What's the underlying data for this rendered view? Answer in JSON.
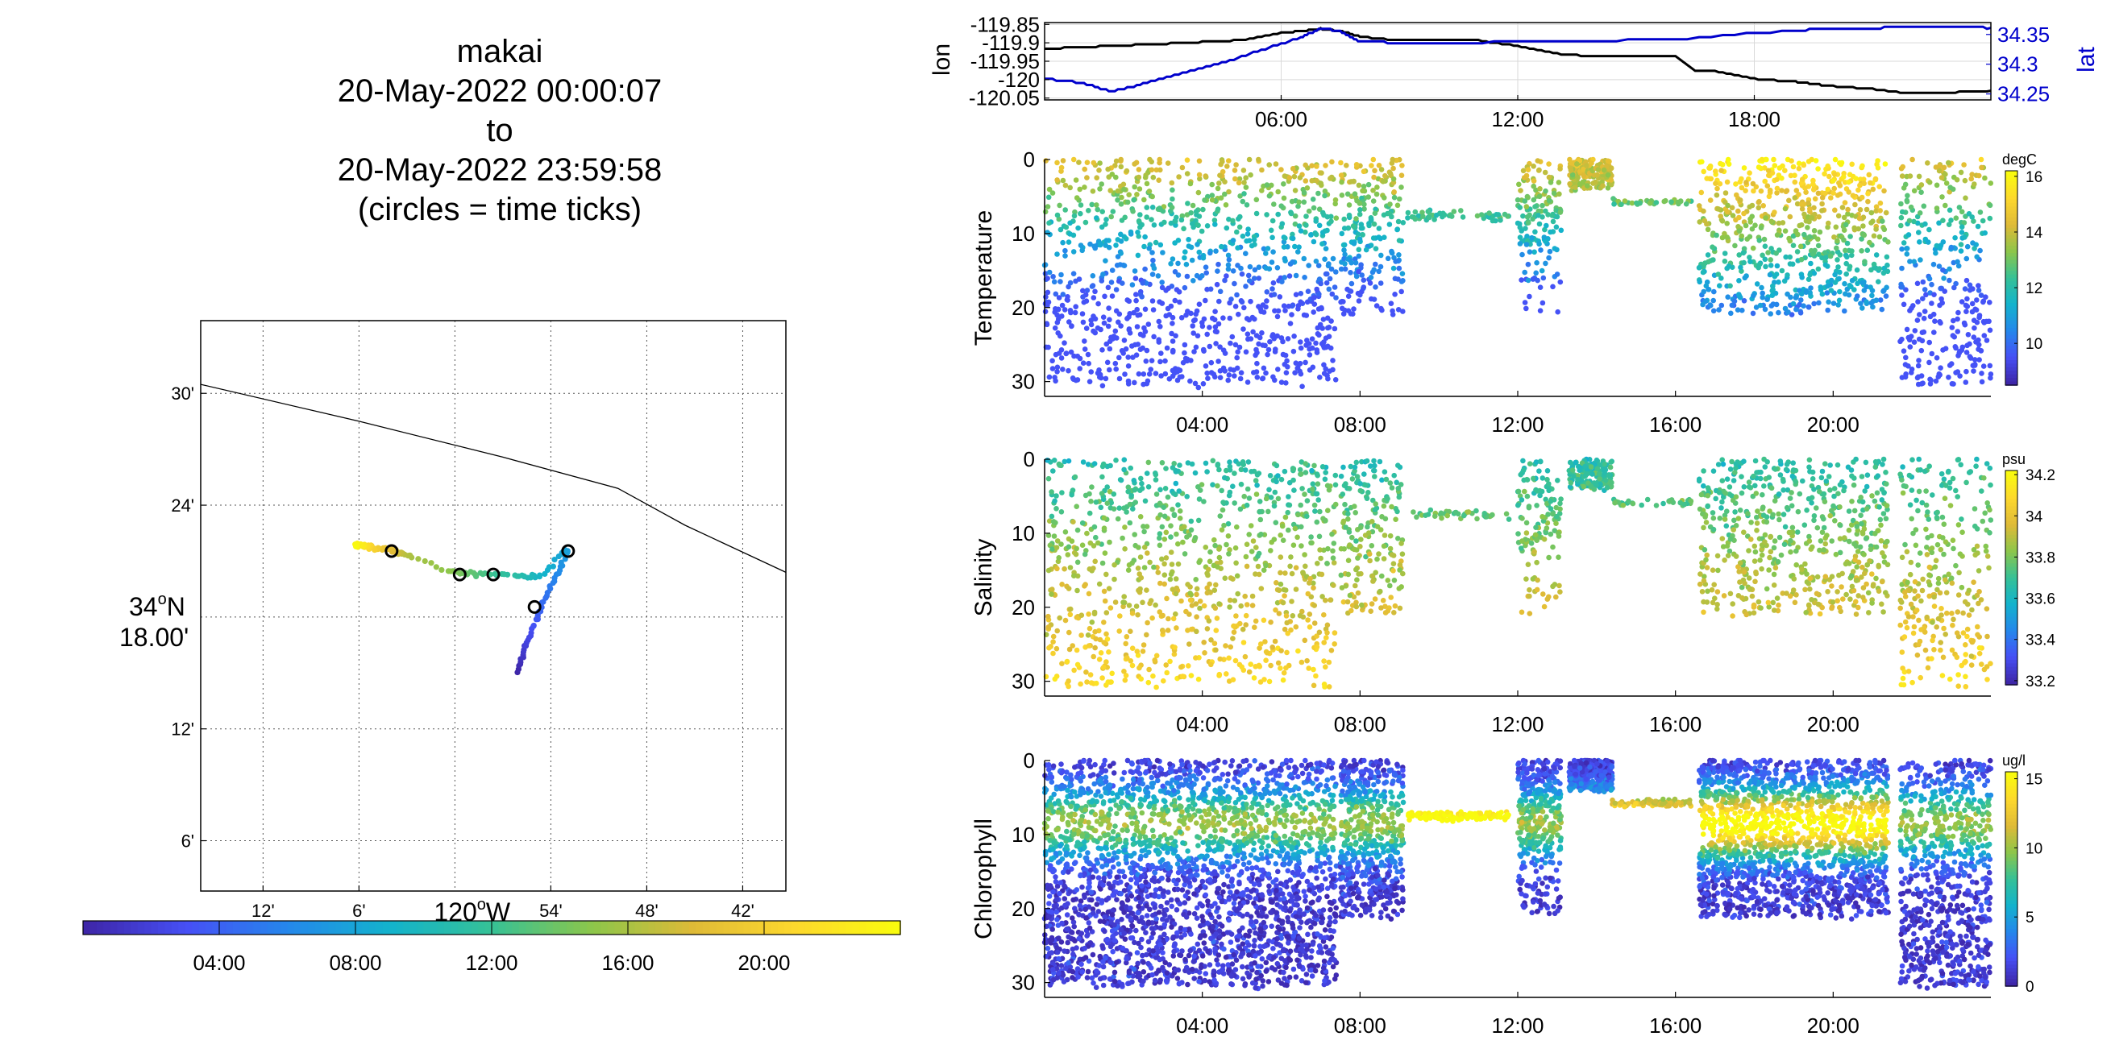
{
  "title": {
    "line1": "makai",
    "line2": "20-May-2022 00:00:07",
    "line3": "to",
    "line4": "20-May-2022 23:59:58",
    "line5": "(circles = time ticks)"
  },
  "colors": {
    "parula": [
      "#3e26a8",
      "#4650f6",
      "#2488eb",
      "#13b3cc",
      "#36c196",
      "#8dc64a",
      "#dfba37",
      "#fdd82d",
      "#f9fb0e"
    ],
    "lon_line": "#000000",
    "lat_line": "#0000cc",
    "grid": "#d9d9d9",
    "coastline": "#000000"
  },
  "chart_data": [
    {
      "type": "map",
      "name": "track-map",
      "x_ticks": [
        "12'",
        "6'",
        "54'",
        "48'",
        "42'"
      ],
      "x_tick_values": [
        -120.2,
        -120.1,
        -119.9,
        -119.8,
        -119.7
      ],
      "x_major_label": "120°W",
      "x_major_deg": "120",
      "x_major_hem": "W",
      "y_ticks": [
        "30'",
        "24'",
        "12'",
        "6'"
      ],
      "y_tick_values": [
        34.5,
        34.4,
        34.2,
        34.1
      ],
      "y_major_label_line1": "34°N",
      "y_major_deg": "34",
      "y_major_hem": "N",
      "y_major_label_line2": "18.00'",
      "y_major_value": 34.3,
      "xlim": [
        -120.265,
        -119.655
      ],
      "ylim": [
        34.055,
        34.565
      ],
      "coastline": [
        [
          -120.265,
          34.508
        ],
        [
          -120.1,
          34.475
        ],
        [
          -119.95,
          34.443
        ],
        [
          -119.83,
          34.415
        ],
        [
          -119.76,
          34.382
        ],
        [
          -119.655,
          34.34
        ]
      ],
      "track": [
        {
          "t": 0.0,
          "lon": -119.935,
          "lat": 34.252
        },
        {
          "t": 1.0,
          "lon": -119.93,
          "lat": 34.264
        },
        {
          "t": 2.0,
          "lon": -119.925,
          "lat": 34.277
        },
        {
          "t": 3.0,
          "lon": -119.918,
          "lat": 34.292
        },
        {
          "t": 4.0,
          "lon": -119.911,
          "lat": 34.306
        },
        {
          "t": 5.0,
          "lon": -119.903,
          "lat": 34.322
        },
        {
          "t": 6.0,
          "lon": -119.894,
          "lat": 34.338
        },
        {
          "t": 7.0,
          "lon": -119.886,
          "lat": 34.352
        },
        {
          "t": 7.5,
          "lon": -119.882,
          "lat": 34.36
        },
        {
          "t": 8.0,
          "lon": -119.89,
          "lat": 34.357
        },
        {
          "t": 9.0,
          "lon": -119.907,
          "lat": 34.337
        },
        {
          "t": 10.0,
          "lon": -119.921,
          "lat": 34.336
        },
        {
          "t": 11.0,
          "lon": -119.936,
          "lat": 34.337
        },
        {
          "t": 12.0,
          "lon": -119.96,
          "lat": 34.338
        },
        {
          "t": 13.0,
          "lon": -119.976,
          "lat": 34.338
        },
        {
          "t": 14.0,
          "lon": -119.992,
          "lat": 34.34
        },
        {
          "t": 15.0,
          "lon": -120.006,
          "lat": 34.342
        },
        {
          "t": 16.0,
          "lon": -120.045,
          "lat": 34.355
        },
        {
          "t": 17.0,
          "lon": -120.058,
          "lat": 34.357
        },
        {
          "t": 18.0,
          "lon": -120.065,
          "lat": 34.359
        },
        {
          "t": 19.0,
          "lon": -120.073,
          "lat": 34.361
        },
        {
          "t": 20.0,
          "lon": -120.082,
          "lat": 34.361
        },
        {
          "t": 21.0,
          "lon": -120.09,
          "lat": 34.362
        },
        {
          "t": 22.0,
          "lon": -120.095,
          "lat": 34.363
        },
        {
          "t": 23.0,
          "lon": -120.1,
          "lat": 34.364
        },
        {
          "t": 24.0,
          "lon": -120.105,
          "lat": 34.364
        }
      ],
      "time_tick_circles": [
        {
          "lon": -119.917,
          "lat": 34.309
        },
        {
          "lon": -119.882,
          "lat": 34.359
        },
        {
          "lon": -119.96,
          "lat": 34.338
        },
        {
          "lon": -119.995,
          "lat": 34.338
        },
        {
          "lon": -120.066,
          "lat": 34.359
        }
      ]
    },
    {
      "type": "colorbar",
      "name": "time-colorbar",
      "orientation": "horizontal",
      "range_hours": [
        0,
        24
      ],
      "ticks": [
        "04:00",
        "08:00",
        "12:00",
        "16:00",
        "20:00"
      ],
      "tick_values": [
        4,
        8,
        12,
        16,
        20
      ]
    },
    {
      "type": "line",
      "name": "lon-lat-timeseries",
      "xlim_hours": [
        0,
        24
      ],
      "x_ticks": [
        "06:00",
        "12:00",
        "18:00"
      ],
      "x_tick_values": [
        6,
        12,
        18
      ],
      "ylabel_left": "lon",
      "ylabel_right": "lat",
      "y_left_ticks": [
        "-119.85",
        "-119.9",
        "-119.95",
        "-120",
        "-120.05"
      ],
      "y_left_values": [
        -119.85,
        -119.9,
        -119.95,
        -120.0,
        -120.05
      ],
      "y_left_lim": [
        -120.055,
        -119.845
      ],
      "y_right_ticks": [
        "34.35",
        "34.3",
        "34.25"
      ],
      "y_right_values": [
        34.35,
        34.3,
        34.25
      ],
      "y_right_lim": [
        34.24,
        34.37
      ],
      "series": [
        {
          "name": "lon",
          "axis": "left",
          "x": [
            0,
            1,
            2,
            3,
            4,
            5,
            6,
            6.5,
            7,
            7.5,
            8,
            9,
            10,
            11,
            12,
            13,
            14,
            15,
            16,
            16.5,
            17,
            18,
            19,
            19.5,
            20,
            21,
            22,
            23,
            24
          ],
          "y": [
            -119.916,
            -119.912,
            -119.907,
            -119.903,
            -119.898,
            -119.893,
            -119.874,
            -119.868,
            -119.862,
            -119.868,
            -119.883,
            -119.894,
            -119.894,
            -119.894,
            -119.908,
            -119.93,
            -119.937,
            -119.937,
            -119.937,
            -119.975,
            -119.978,
            -119.998,
            -120.005,
            -120.012,
            -120.018,
            -120.025,
            -120.038,
            -120.035,
            -120.03
          ]
        },
        {
          "name": "lat",
          "axis": "right",
          "x": [
            0,
            1,
            1.7,
            2.5,
            3.5,
            4.5,
            5.5,
            6.5,
            7,
            7.5,
            8,
            9,
            12,
            13,
            16,
            19,
            20,
            21,
            22,
            23,
            24
          ],
          "y": [
            34.276,
            34.268,
            34.254,
            34.267,
            34.286,
            34.302,
            34.324,
            34.345,
            34.36,
            34.356,
            34.338,
            34.336,
            34.337,
            34.338,
            34.342,
            34.357,
            34.359,
            34.361,
            34.362,
            34.363,
            34.361
          ]
        }
      ]
    },
    {
      "type": "scatter",
      "name": "temperature-section",
      "ylabel": "Temperature",
      "colorbar_unit": "degC",
      "colorbar_ticks": [
        "16",
        "14",
        "12",
        "10"
      ],
      "colorbar_tick_values": [
        16,
        14,
        12,
        10
      ],
      "color_range": [
        8.5,
        16.2
      ],
      "xlim_hours": [
        0,
        24
      ],
      "x_ticks": [
        "04:00",
        "08:00",
        "12:00",
        "16:00",
        "20:00"
      ],
      "x_tick_values": [
        4,
        8,
        12,
        16,
        20
      ],
      "y_ticks": [
        "0",
        "10",
        "20",
        "30"
      ],
      "y_tick_values": [
        0,
        10,
        20,
        30
      ],
      "ylim_reversed": [
        0,
        32
      ]
    },
    {
      "type": "scatter",
      "name": "salinity-section",
      "ylabel": "Salinity",
      "colorbar_unit": "psu",
      "colorbar_ticks": [
        "34.2",
        "34",
        "33.8",
        "33.6",
        "33.4",
        "33.2"
      ],
      "colorbar_tick_values": [
        34.2,
        34.0,
        33.8,
        33.6,
        33.4,
        33.2
      ],
      "color_range": [
        33.18,
        34.22
      ],
      "xlim_hours": [
        0,
        24
      ],
      "x_ticks": [
        "04:00",
        "08:00",
        "12:00",
        "16:00",
        "20:00"
      ],
      "x_tick_values": [
        4,
        8,
        12,
        16,
        20
      ],
      "y_ticks": [
        "0",
        "10",
        "20",
        "30"
      ],
      "y_tick_values": [
        0,
        10,
        20,
        30
      ],
      "ylim_reversed": [
        0,
        32
      ]
    },
    {
      "type": "scatter",
      "name": "chlorophyll-section",
      "ylabel": "Chlorophyll",
      "colorbar_unit": "ug/l",
      "colorbar_ticks": [
        "15",
        "10",
        "5",
        "0"
      ],
      "colorbar_tick_values": [
        15,
        10,
        5,
        0
      ],
      "color_range": [
        0,
        15.5
      ],
      "xlim_hours": [
        0,
        24
      ],
      "x_ticks": [
        "04:00",
        "08:00",
        "12:00",
        "16:00",
        "20:00"
      ],
      "x_tick_values": [
        4,
        8,
        12,
        16,
        20
      ],
      "y_ticks": [
        "0",
        "10",
        "20",
        "30"
      ],
      "y_tick_values": [
        0,
        10,
        20,
        30
      ],
      "ylim_reversed": [
        0,
        32
      ]
    }
  ]
}
